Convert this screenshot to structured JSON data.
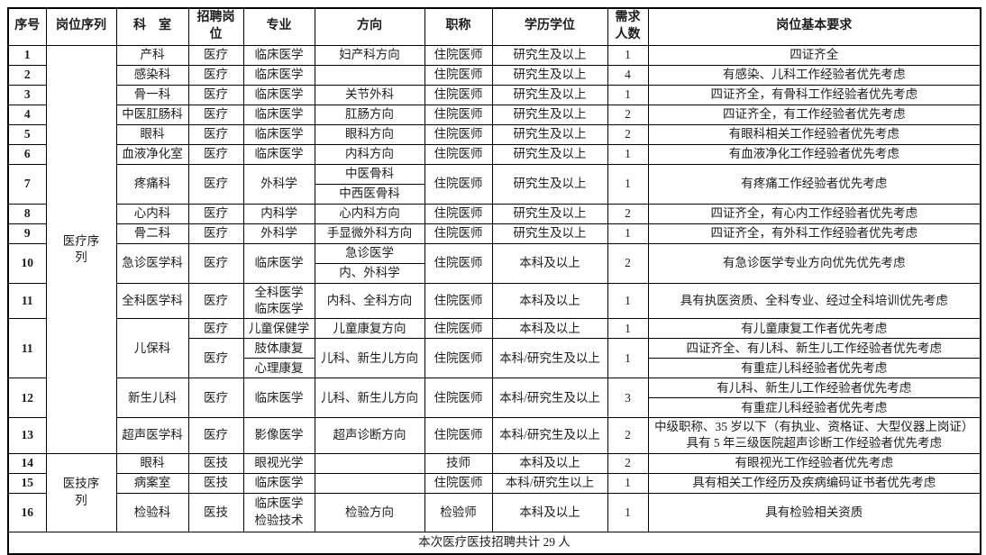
{
  "table": {
    "header": [
      "序号",
      "岗位序列",
      "科　室",
      "招聘岗位",
      "专业",
      "方向",
      "职称",
      "学历学位",
      "需求人数",
      "岗位基本要求"
    ],
    "rows": [
      [
        {
          "t": "1",
          "b": 1
        },
        {
          "t": "医疗序列",
          "rs": 19,
          "n": "series-medical"
        },
        {
          "t": "产科"
        },
        {
          "t": "医疗"
        },
        {
          "t": "临床医学"
        },
        {
          "t": "妇产科方向"
        },
        {
          "t": "住院医师"
        },
        {
          "t": "研究生及以上"
        },
        {
          "t": "1"
        },
        {
          "t": "四证齐全"
        }
      ],
      [
        {
          "t": "2",
          "b": 1
        },
        {
          "t": "感染科"
        },
        {
          "t": "医疗"
        },
        {
          "t": "临床医学"
        },
        {
          "t": ""
        },
        {
          "t": "住院医师"
        },
        {
          "t": "研究生及以上"
        },
        {
          "t": "4"
        },
        {
          "t": "有感染、儿科工作经验者优先考虑"
        }
      ],
      [
        {
          "t": "3",
          "b": 1
        },
        {
          "t": "骨一科"
        },
        {
          "t": "医疗"
        },
        {
          "t": "临床医学"
        },
        {
          "t": "关节外科"
        },
        {
          "t": "住院医师"
        },
        {
          "t": "研究生及以上"
        },
        {
          "t": "1"
        },
        {
          "t": "四证齐全，有骨科工作经验者优先考虑"
        }
      ],
      [
        {
          "t": "4",
          "b": 1
        },
        {
          "t": "中医肛肠科"
        },
        {
          "t": "医疗"
        },
        {
          "t": "临床医学"
        },
        {
          "t": "肛肠方向"
        },
        {
          "t": "住院医师"
        },
        {
          "t": "研究生及以上"
        },
        {
          "t": "2"
        },
        {
          "t": "四证齐全，有工作经验者优先考虑"
        }
      ],
      [
        {
          "t": "5",
          "b": 1
        },
        {
          "t": "眼科"
        },
        {
          "t": "医疗"
        },
        {
          "t": "临床医学"
        },
        {
          "t": "眼科方向"
        },
        {
          "t": "住院医师"
        },
        {
          "t": "研究生及以上"
        },
        {
          "t": "2"
        },
        {
          "t": "有眼科相关工作经验者优先考虑"
        }
      ],
      [
        {
          "t": "6",
          "b": 1
        },
        {
          "t": "血液净化室"
        },
        {
          "t": "医疗"
        },
        {
          "t": "临床医学"
        },
        {
          "t": "内科方向"
        },
        {
          "t": "住院医师"
        },
        {
          "t": "研究生及以上"
        },
        {
          "t": "1"
        },
        {
          "t": "有血液净化工作经验者优先考虑"
        }
      ],
      [
        {
          "t": "7",
          "b": 1,
          "rs": 2
        },
        {
          "t": "疼痛科",
          "rs": 2
        },
        {
          "t": "医疗",
          "rs": 2
        },
        {
          "t": "外科学",
          "rs": 2
        },
        {
          "t": "中医骨科"
        },
        {
          "t": "住院医师",
          "rs": 2
        },
        {
          "t": "研究生及以上",
          "rs": 2
        },
        {
          "t": "1",
          "rs": 2
        },
        {
          "t": "有疼痛工作经验者优先考虑",
          "rs": 2
        }
      ],
      [
        {
          "t": "中西医骨科"
        }
      ],
      [
        {
          "t": "8",
          "b": 1
        },
        {
          "t": "心内科"
        },
        {
          "t": "医疗"
        },
        {
          "t": "内科学"
        },
        {
          "t": "心内科方向"
        },
        {
          "t": "住院医师"
        },
        {
          "t": "研究生及以上"
        },
        {
          "t": "2"
        },
        {
          "t": "四证齐全，有心内工作经验者优先考虑"
        }
      ],
      [
        {
          "t": "9",
          "b": 1
        },
        {
          "t": "骨二科"
        },
        {
          "t": "医疗"
        },
        {
          "t": "外科学"
        },
        {
          "t": "手显微外科方向"
        },
        {
          "t": "住院医师"
        },
        {
          "t": "研究生及以上"
        },
        {
          "t": "1"
        },
        {
          "t": "四证齐全，有外科工作经验者优先考虑"
        }
      ],
      [
        {
          "t": "10",
          "b": 1,
          "rs": 2
        },
        {
          "t": "急诊医学科",
          "rs": 2
        },
        {
          "t": "医疗",
          "rs": 2
        },
        {
          "t": "临床医学",
          "rs": 2
        },
        {
          "t": "急诊医学"
        },
        {
          "t": "住院医师",
          "rs": 2
        },
        {
          "t": "本科及以上",
          "rs": 2
        },
        {
          "t": "2",
          "rs": 2
        },
        {
          "t": "有急诊医学专业方向优先优先考虑",
          "rs": 2
        }
      ],
      [
        {
          "t": "内、外科学"
        }
      ],
      [
        {
          "t": "11",
          "b": 1
        },
        {
          "t": "全科医学科"
        },
        {
          "t": "医疗"
        },
        {
          "t": "全科医学\n临床医学"
        },
        {
          "t": "内科、全科方向"
        },
        {
          "t": "住院医师"
        },
        {
          "t": "本科及以上"
        },
        {
          "t": "1"
        },
        {
          "t": "具有执医资质、全科专业、经过全科培训优先考虑"
        }
      ],
      [
        {
          "t": "11",
          "b": 1,
          "rs": 3
        },
        {
          "t": "儿保科",
          "rs": 3
        },
        {
          "t": "医疗"
        },
        {
          "t": "儿童保健学"
        },
        {
          "t": "儿童康复方向"
        },
        {
          "t": "住院医师"
        },
        {
          "t": "本科及以上"
        },
        {
          "t": "1"
        },
        {
          "t": "有儿童康复工作者优先考虑"
        }
      ],
      [
        {
          "t": "医疗",
          "rs": 2
        },
        {
          "t": "肢体康复"
        },
        {
          "t": "儿科、新生儿方向",
          "rs": 2
        },
        {
          "t": "住院医师",
          "rs": 2
        },
        {
          "t": "本科/研究生及以上",
          "rs": 2
        },
        {
          "t": "1",
          "rs": 2
        },
        {
          "t": "四证齐全、有儿科、新生儿工作经验者优先考虑"
        }
      ],
      [
        {
          "t": "心理康复"
        },
        {
          "t": "有重症儿科经验者优先考虑"
        }
      ],
      [
        {
          "t": "12",
          "b": 1,
          "rs": 2
        },
        {
          "t": "新生儿科",
          "rs": 2
        },
        {
          "t": "医疗",
          "rs": 2
        },
        {
          "t": "临床医学",
          "rs": 2
        },
        {
          "t": "儿科、新生儿方向",
          "rs": 2
        },
        {
          "t": "住院医师",
          "rs": 2
        },
        {
          "t": "本科/研究生及以上",
          "rs": 2
        },
        {
          "t": "3",
          "rs": 2
        },
        {
          "t": "有儿科、新生儿工作经验者优先考虑"
        }
      ],
      [
        {
          "t": "有重症儿科经验者优先考虑"
        }
      ],
      [
        {
          "t": "13",
          "b": 1
        },
        {
          "t": "超声医学科"
        },
        {
          "t": "医疗"
        },
        {
          "t": "影像医学"
        },
        {
          "t": "超声诊断方向"
        },
        {
          "t": "住院医师"
        },
        {
          "t": "本科/研究生及以上"
        },
        {
          "t": "2"
        },
        {
          "t": "中级职称、35 岁以下（有执业、资格证、大型仪器上岗证）具有 5 年三级医院超声诊断工作经验者优先考虑"
        }
      ],
      [
        {
          "t": "14",
          "b": 1
        },
        {
          "t": "医技序列",
          "rs": 3,
          "n": "series-medtech"
        },
        {
          "t": "眼科"
        },
        {
          "t": "医技"
        },
        {
          "t": "眼视光学"
        },
        {
          "t": ""
        },
        {
          "t": "技师"
        },
        {
          "t": "本科及以上"
        },
        {
          "t": "2"
        },
        {
          "t": "有眼视光工作经验者优先考虑"
        }
      ],
      [
        {
          "t": "15",
          "b": 1
        },
        {
          "t": "病案室"
        },
        {
          "t": "医技"
        },
        {
          "t": "临床医学"
        },
        {
          "t": ""
        },
        {
          "t": "住院医师"
        },
        {
          "t": "本科/研究生以上"
        },
        {
          "t": "1"
        },
        {
          "t": "具有相关工作经历及疾病编码证书者优先考虑"
        }
      ],
      [
        {
          "t": "16",
          "b": 1
        },
        {
          "t": "检验科"
        },
        {
          "t": "医技"
        },
        {
          "t": "临床医学\n检验技术"
        },
        {
          "t": "检验方向"
        },
        {
          "t": "检验师"
        },
        {
          "t": "本科及以上"
        },
        {
          "t": "1"
        },
        {
          "t": "具有检验相关资质"
        }
      ]
    ],
    "footer": "本次医疗医技招聘共计 29 人"
  }
}
